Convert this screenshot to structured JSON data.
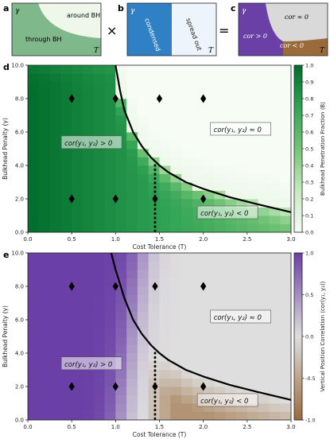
{
  "panel_a": {
    "letter": "a",
    "label_gamma": "γ",
    "label_top": "around BH",
    "label_bottom": "through BH",
    "label_T": "T",
    "colors": {
      "dark": "#7fb88a",
      "light": "#eef7e9"
    }
  },
  "times_sign": "×",
  "panel_b": {
    "letter": "b",
    "label_gamma": "γ",
    "label_left": "condensed",
    "label_right": "spread out",
    "label_T": "T",
    "colors": {
      "left": "#2f80c4",
      "right": "#eef4fb"
    }
  },
  "equals_sign": "=",
  "panel_c": {
    "letter": "c",
    "label_gamma": "γ",
    "label_zero": "cor ≈ 0",
    "label_pos": "cor > 0",
    "label_neg": "cor < 0",
    "label_T": "T",
    "colors": {
      "pos": "#6a3fa6",
      "zero": "#d9d9d9",
      "neg": "#9b6a3a"
    }
  },
  "chart_data": [
    {
      "type": "heatmap",
      "panel": "d",
      "xlabel": "Cost Tolerance (T)",
      "ylabel": "Bulkhead Penalty (γ)",
      "xlim": [
        0,
        3
      ],
      "ylim": [
        0,
        10
      ],
      "x_ticks": [
        "0.0",
        "0.5",
        "1.0",
        "1.5",
        "2.0",
        "2.5",
        "3.0"
      ],
      "y_ticks": [
        "0.0",
        "2.0",
        "4.0",
        "6.0",
        "8.0",
        "10.0"
      ],
      "grid_cols": 24,
      "grid_rows": 20,
      "colorbar": {
        "label": "Bulkhead Penetration Fraction ⟨B⟩",
        "range": [
          0,
          1
        ],
        "ticks": [
          "0.0",
          "0.1",
          "0.2",
          "0.3",
          "0.4",
          "0.5",
          "0.6",
          "0.7",
          "0.8",
          "0.9",
          "1.0"
        ],
        "colors": [
          "#f7fcf5",
          "#c7e9c0",
          "#74c476",
          "#31a354",
          "#006d2c"
        ]
      },
      "boundary_curve": {
        "x": [
          1.0,
          1.05,
          1.1,
          1.2,
          1.3,
          1.4,
          1.5,
          1.6,
          1.8,
          2.0,
          2.3,
          2.6,
          3.0
        ],
        "y": [
          10.0,
          8.5,
          7.3,
          6.0,
          5.15,
          4.5,
          4.0,
          3.6,
          3.0,
          2.6,
          2.1,
          1.7,
          1.2
        ]
      },
      "dashed_line": {
        "x": 1.45,
        "y": [
          0,
          4.2
        ]
      },
      "markers": [
        {
          "x": 0.5,
          "y": 8
        },
        {
          "x": 1.0,
          "y": 8
        },
        {
          "x": 1.5,
          "y": 8
        },
        {
          "x": 2.0,
          "y": 8
        },
        {
          "x": 0.5,
          "y": 2
        },
        {
          "x": 1.0,
          "y": 2
        },
        {
          "x": 1.45,
          "y": 2
        },
        {
          "x": 2.0,
          "y": 2
        }
      ],
      "annotations": [
        {
          "text": "cor(y₁, y₂) ≈ 0",
          "x": 2.1,
          "y": 6.0
        },
        {
          "text": "cor(y₁, y₂) > 0",
          "x": 0.4,
          "y": 5.2
        },
        {
          "text": "cor(y₁, y₂) < 0",
          "x": 1.95,
          "y": 1.0
        }
      ]
    },
    {
      "type": "heatmap",
      "panel": "e",
      "xlabel": "Cost Tolerance (T)",
      "ylabel": "Bulkhead Penalty (γ)",
      "xlim": [
        0,
        3
      ],
      "ylim": [
        0,
        10
      ],
      "x_ticks": [
        "0.0",
        "0.5",
        "1.0",
        "1.5",
        "2.0",
        "2.5",
        "3.0"
      ],
      "y_ticks": [
        "0.0",
        "2.0",
        "4.0",
        "6.0",
        "8.0",
        "10.0"
      ],
      "grid_cols": 24,
      "grid_rows": 20,
      "colorbar": {
        "label": "Vertical Position Correlation ⟨cor(y₁, y₂)⟩",
        "range": [
          -1,
          1
        ],
        "ticks": [
          "1.0",
          "0.5",
          "0.0",
          "-0.5",
          "-1.0"
        ],
        "colors": {
          "pos": "#6a3fa6",
          "zero": "#dedede",
          "neg": "#9b6a3a"
        }
      },
      "boundary_curve": {
        "x": [
          0.95,
          1.0,
          1.1,
          1.2,
          1.3,
          1.4,
          1.5,
          1.6,
          1.8,
          2.0,
          2.3,
          2.6,
          3.0
        ],
        "y": [
          10.0,
          9.0,
          7.3,
          6.0,
          5.15,
          4.5,
          4.0,
          3.6,
          3.0,
          2.6,
          2.1,
          1.7,
          1.2
        ]
      },
      "dashed_line": {
        "x": 1.45,
        "y": [
          0,
          4.2
        ]
      },
      "markers": [
        {
          "x": 0.5,
          "y": 8
        },
        {
          "x": 1.0,
          "y": 8
        },
        {
          "x": 1.45,
          "y": 8
        },
        {
          "x": 2.0,
          "y": 8
        },
        {
          "x": 0.5,
          "y": 2
        },
        {
          "x": 1.0,
          "y": 2
        },
        {
          "x": 1.45,
          "y": 2
        },
        {
          "x": 2.0,
          "y": 2
        }
      ],
      "annotations": [
        {
          "text": "cor(y₁, y₂) ≈ 0",
          "x": 2.1,
          "y": 6.0
        },
        {
          "text": "cor(y₁, y₂) > 0",
          "x": 0.4,
          "y": 3.2
        },
        {
          "text": "cor(y₁, y₂) < 0",
          "x": 1.95,
          "y": 1.0
        }
      ]
    }
  ],
  "panel_letters": {
    "d": "d",
    "e": "e"
  }
}
